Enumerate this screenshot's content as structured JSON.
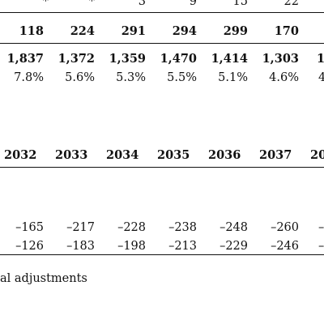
{
  "top_table": {
    "partial_row": [
      "*",
      "*",
      "3",
      "9",
      "15",
      "22"
    ],
    "row1": [
      "118",
      "224",
      "291",
      "294",
      "299",
      "170"
    ],
    "row2": [
      "1,837",
      "1,372",
      "1,359",
      "1,470",
      "1,414",
      "1,303",
      "1"
    ],
    "row3": [
      "7.8%",
      "5.6%",
      "5.3%",
      "5.5%",
      "5.1%",
      "4.6%",
      "4"
    ]
  },
  "bottom_table": {
    "years": [
      "2032",
      "2033",
      "2034",
      "2035",
      "2036",
      "2037",
      "20"
    ],
    "row1": [
      "–165",
      "–217",
      "–228",
      "–238",
      "–248",
      "–260",
      "–"
    ],
    "row2": [
      "–126",
      "–183",
      "–198",
      "–213",
      "–229",
      "–246",
      "–"
    ]
  },
  "note_text": "al adjustments"
}
